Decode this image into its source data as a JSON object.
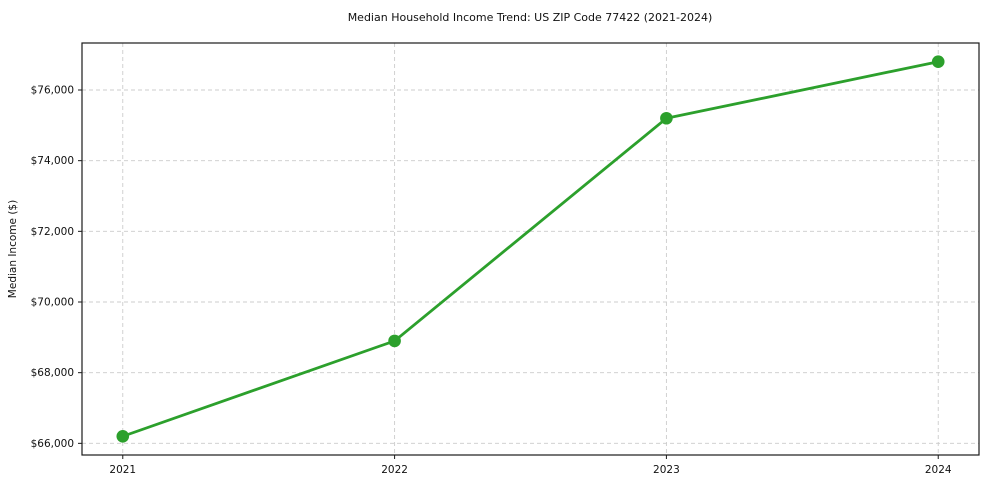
{
  "chart_data": {
    "type": "line",
    "title": "Median Household Income Trend: US ZIP Code 77422 (2021-2024)",
    "xlabel": "",
    "ylabel": "Median Income ($)",
    "x": [
      2021,
      2022,
      2023,
      2024
    ],
    "categories": [
      "2021",
      "2022",
      "2023",
      "2024"
    ],
    "values": [
      66200,
      68900,
      75200,
      76800
    ],
    "series": [
      {
        "name": "Median Household Income",
        "values": [
          66200,
          68900,
          75200,
          76800
        ]
      }
    ],
    "yticks": [
      66000,
      68000,
      70000,
      72000,
      74000,
      76000
    ],
    "ytick_labels": [
      "$66,000",
      "$68,000",
      "$70,000",
      "$72,000",
      "$74,000",
      "$76,000"
    ],
    "xlim": [
      2020.85,
      2024.15
    ],
    "ylim": [
      65670,
      77330
    ],
    "grid": true,
    "grid_style": "dashed",
    "legend_position": "none",
    "marker": "circle",
    "colors": {
      "line": "#2ca02c",
      "marker": "#2ca02c",
      "grid": "#cccccc",
      "spine": "#1a1a1a",
      "text": "#111111",
      "background": "#ffffff"
    }
  }
}
